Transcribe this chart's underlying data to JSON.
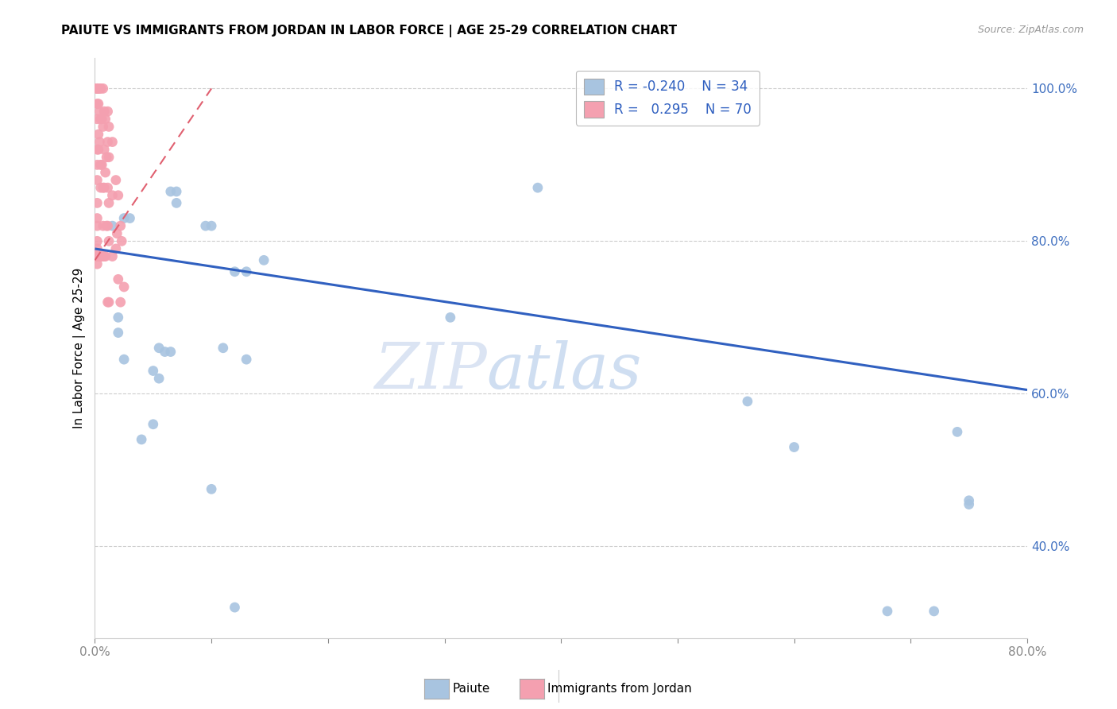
{
  "title": "PAIUTE VS IMMIGRANTS FROM JORDAN IN LABOR FORCE | AGE 25-29 CORRELATION CHART",
  "source": "Source: ZipAtlas.com",
  "ylabel": "In Labor Force | Age 25-29",
  "watermark_zip": "ZIP",
  "watermark_atlas": "atlas",
  "legend_blue_r": "-0.240",
  "legend_blue_n": "34",
  "legend_pink_r": "0.295",
  "legend_pink_n": "70",
  "legend_label_blue": "Paiute",
  "legend_label_pink": "Immigrants from Jordan",
  "xlim": [
    0.0,
    0.8
  ],
  "ylim": [
    0.28,
    1.04
  ],
  "xtick_values": [
    0.0,
    0.1,
    0.2,
    0.3,
    0.4,
    0.5,
    0.6,
    0.7,
    0.8
  ],
  "ytick_labels": [
    "40.0%",
    "60.0%",
    "80.0%",
    "100.0%"
  ],
  "ytick_values": [
    0.4,
    0.6,
    0.8,
    1.0
  ],
  "blue_color": "#a8c4e0",
  "pink_color": "#f4a0b0",
  "blue_line_color": "#3060c0",
  "pink_line_color": "#e06070",
  "grid_color": "#cccccc",
  "blue_scatter_x": [
    0.04,
    0.05,
    0.015,
    0.03,
    0.025,
    0.07,
    0.065,
    0.07,
    0.02,
    0.02,
    0.025,
    0.095,
    0.1,
    0.12,
    0.13,
    0.145,
    0.38,
    0.06,
    0.055,
    0.05,
    0.055,
    0.065,
    0.11,
    0.13,
    0.305,
    0.56,
    0.6,
    0.68,
    0.72,
    0.74,
    0.75,
    0.75,
    0.1,
    0.12
  ],
  "blue_scatter_y": [
    0.54,
    0.56,
    0.82,
    0.83,
    0.83,
    0.85,
    0.865,
    0.865,
    0.68,
    0.7,
    0.645,
    0.82,
    0.82,
    0.76,
    0.76,
    0.775,
    0.87,
    0.655,
    0.66,
    0.63,
    0.62,
    0.655,
    0.66,
    0.645,
    0.7,
    0.59,
    0.53,
    0.315,
    0.315,
    0.55,
    0.455,
    0.46,
    0.475,
    0.32
  ],
  "pink_scatter_x": [
    0.002,
    0.002,
    0.002,
    0.002,
    0.002,
    0.002,
    0.002,
    0.002,
    0.002,
    0.002,
    0.002,
    0.002,
    0.002,
    0.002,
    0.002,
    0.002,
    0.002,
    0.003,
    0.003,
    0.003,
    0.003,
    0.003,
    0.004,
    0.004,
    0.004,
    0.004,
    0.005,
    0.005,
    0.005,
    0.005,
    0.005,
    0.006,
    0.006,
    0.006,
    0.007,
    0.007,
    0.007,
    0.007,
    0.007,
    0.008,
    0.008,
    0.008,
    0.008,
    0.009,
    0.009,
    0.009,
    0.01,
    0.01,
    0.011,
    0.011,
    0.011,
    0.011,
    0.011,
    0.012,
    0.012,
    0.012,
    0.012,
    0.012,
    0.015,
    0.015,
    0.015,
    0.018,
    0.018,
    0.019,
    0.02,
    0.02,
    0.022,
    0.022,
    0.023,
    0.025
  ],
  "pink_scatter_y": [
    1.0,
    1.0,
    1.0,
    1.0,
    1.0,
    0.98,
    0.96,
    0.92,
    0.9,
    0.88,
    0.85,
    0.83,
    0.82,
    0.8,
    0.79,
    0.78,
    0.77,
    1.0,
    0.98,
    0.94,
    0.92,
    0.78,
    1.0,
    0.97,
    0.93,
    0.78,
    1.0,
    0.96,
    0.9,
    0.87,
    0.78,
    0.96,
    0.9,
    0.78,
    1.0,
    0.95,
    0.87,
    0.82,
    0.78,
    0.97,
    0.92,
    0.87,
    0.78,
    0.96,
    0.89,
    0.78,
    0.91,
    0.82,
    0.97,
    0.93,
    0.87,
    0.82,
    0.72,
    0.95,
    0.91,
    0.85,
    0.8,
    0.72,
    0.93,
    0.86,
    0.78,
    0.88,
    0.79,
    0.81,
    0.86,
    0.75,
    0.82,
    0.72,
    0.8,
    0.74
  ],
  "blue_trend_x": [
    0.0,
    0.8
  ],
  "blue_trend_y": [
    0.79,
    0.605
  ],
  "pink_trend_x": [
    0.0,
    0.1
  ],
  "pink_trend_y": [
    0.775,
    1.0
  ]
}
